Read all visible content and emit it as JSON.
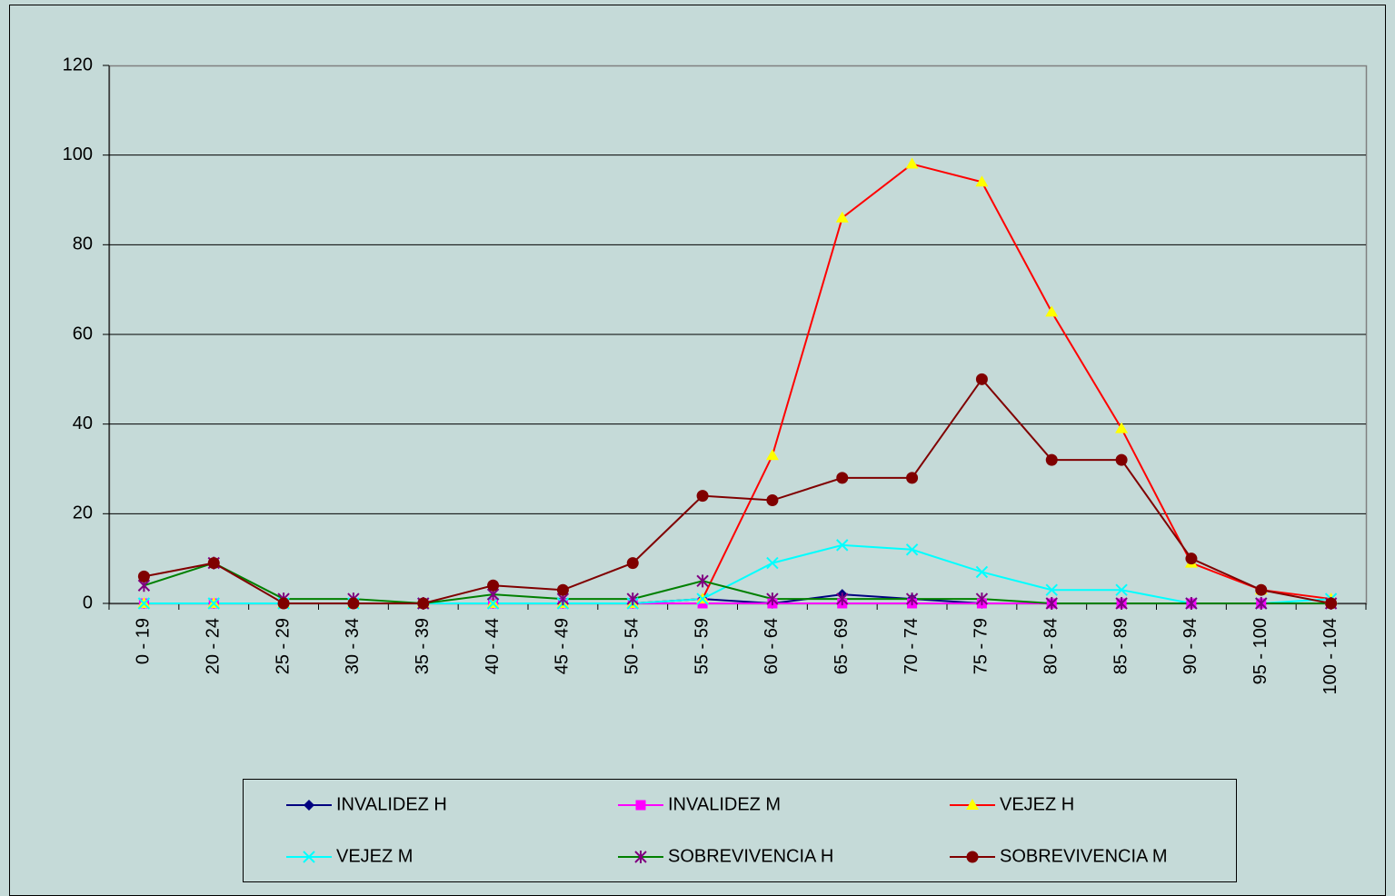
{
  "chart_data": {
    "type": "line",
    "categories": [
      "0 - 19",
      "20 - 24",
      "25 - 29",
      "30 - 34",
      "35 - 39",
      "40 - 44",
      "45 - 49",
      "50 - 54",
      "55 - 59",
      "60 - 64",
      "65 - 69",
      "70 - 74",
      "75 - 79",
      "80 - 84",
      "85 - 89",
      "90 - 94",
      "95 - 100",
      "100 - 104"
    ],
    "series": [
      {
        "name": "INVALIDEZ H",
        "color": "#000080",
        "marker": "diamond",
        "marker_color": "#000080",
        "values": [
          0,
          0,
          0,
          0,
          0,
          0,
          0,
          0,
          1,
          0,
          2,
          1,
          0,
          0,
          0,
          0,
          0,
          0
        ]
      },
      {
        "name": "INVALIDEZ M",
        "color": "#ff00ff",
        "marker": "square",
        "marker_color": "#ff00ff",
        "values": [
          0,
          0,
          0,
          0,
          0,
          0,
          0,
          0,
          0,
          0,
          0,
          0,
          0,
          0,
          0,
          0,
          0,
          0
        ]
      },
      {
        "name": "VEJEZ H",
        "color": "#ff0000",
        "marker": "triangle",
        "marker_color": "#ffff00",
        "values": [
          0,
          0,
          0,
          0,
          0,
          0,
          0,
          0,
          1,
          33,
          86,
          98,
          94,
          65,
          39,
          9,
          3,
          1
        ]
      },
      {
        "name": "VEJEZ M",
        "color": "#00ffff",
        "marker": "x",
        "marker_color": "#00ffff",
        "values": [
          0,
          0,
          0,
          0,
          0,
          0,
          0,
          0,
          1,
          9,
          13,
          12,
          7,
          3,
          3,
          0,
          0,
          1
        ]
      },
      {
        "name": "SOBREVIVENCIA H",
        "color": "#008000",
        "marker": "asterisk",
        "marker_color": "#800080",
        "values": [
          4,
          9,
          1,
          1,
          0,
          2,
          1,
          1,
          5,
          1,
          1,
          1,
          1,
          0,
          0,
          0,
          0,
          0
        ]
      },
      {
        "name": "SOBREVIVENCIA M",
        "color": "#800000",
        "marker": "circle",
        "marker_color": "#800000",
        "values": [
          6,
          9,
          0,
          0,
          0,
          4,
          3,
          9,
          24,
          23,
          28,
          28,
          50,
          32,
          32,
          10,
          3,
          0
        ]
      }
    ],
    "ylim": [
      0,
      120
    ],
    "yticks": [
      0,
      20,
      40,
      60,
      80,
      100,
      120
    ],
    "grid": true,
    "legend": "bottom"
  }
}
